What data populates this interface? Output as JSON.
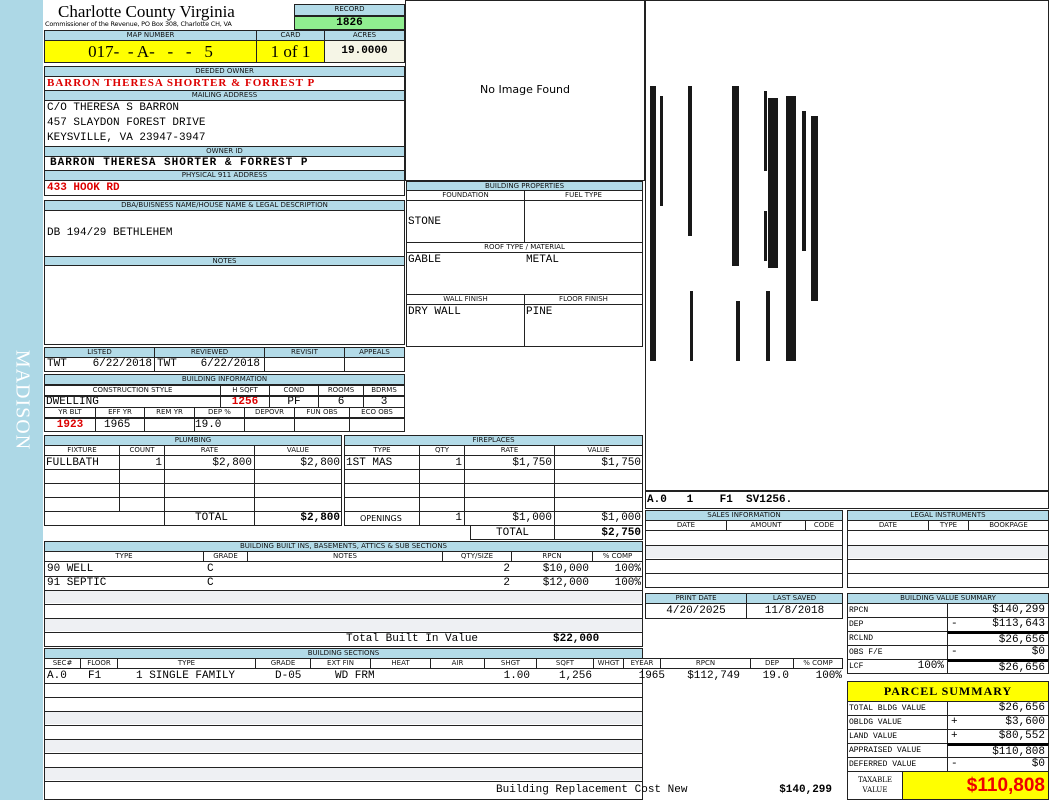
{
  "sidebar": {
    "label": "MADISON"
  },
  "header": {
    "title": "Charlotte County Virginia",
    "subtitle": "Commissioner of the Revenue, PO Box 308, Charlotte CH, VA",
    "record_label": "RECORD",
    "record": "1826"
  },
  "parcel": {
    "map_label": "MAP NUMBER",
    "map": "017-  - A-   -   -   5",
    "card_label": "CARD",
    "card": "1 of 1",
    "acres_label": "ACRES",
    "acres": "19.0000"
  },
  "owner": {
    "deeded_label": "DEEDED OWNER",
    "deeded": "BARRON THERESA SHORTER & FORREST P",
    "mailing_label": "MAILING ADDRESS",
    "mailing": [
      "C/O THERESA S BARRON",
      "457 SLAYDON FOREST DRIVE",
      "KEYSVILLE, VA 23947-3947"
    ],
    "id_label": "OWNER ID",
    "id": "BARRON THERESA SHORTER & FORREST P",
    "physical_label": "PHYSICAL 911 ADDRESS",
    "physical": "433 HOOK RD"
  },
  "dba": {
    "label": "DBA/BUISNESS NAME/HOUSE NAME & LEGAL DESCRIPTION",
    "value": "DB 194/29 BETHLEHEM"
  },
  "notes": {
    "label": "NOTES"
  },
  "image": {
    "text": "No Image Found"
  },
  "listing": {
    "listed_label": "LISTED",
    "listed_by": "TWT",
    "listed": "6/22/2018",
    "reviewed_label": "REVIEWED",
    "reviewed_by": "TWT",
    "reviewed": "6/22/2018",
    "revisit_label": "REVISIT",
    "appeals_label": "APPEALS"
  },
  "building_info": {
    "label": "BUILDING INFORMATION",
    "style_label": "CONSTRUCTION STYLE",
    "style": "DWELLING",
    "hsqft_label": "H SQFT",
    "hsqft": "1256",
    "cond_label": "COND",
    "cond": "PF",
    "rooms_label": "ROOMS",
    "rooms": "6",
    "bdrms_label": "BDRMS",
    "bdrms": "3",
    "yrblt_label": "YR BLT",
    "yrblt": "1923",
    "effyr_label": "EFF YR",
    "effyr": "1965",
    "remyr_label": "REM YR",
    "dep_label": "DEP %",
    "dep": "19.0",
    "depovr_label": "DEPOVR",
    "funobs_label": "FUN OBS",
    "ecoobs_label": "ECO OBS"
  },
  "building_props": {
    "label": "BUILDING PROPERTIES",
    "foundation_label": "FOUNDATION",
    "foundation": "STONE",
    "fuel_label": "FUEL TYPE",
    "roof_label": "ROOF TYPE / MATERIAL",
    "roof_type": "GABLE",
    "roof_material": "METAL",
    "wall_label": "WALL FINISH",
    "wall": "DRY WALL",
    "floor_label": "FLOOR FINISH",
    "floor": "PINE"
  },
  "plumbing": {
    "label": "PLUMBING",
    "cols": [
      "FIXTURE",
      "COUNT",
      "RATE",
      "VALUE"
    ],
    "rows": [
      [
        "FULLBATH",
        "1",
        "$2,800",
        "$2,800"
      ]
    ],
    "total_label": "TOTAL",
    "total": "$2,800"
  },
  "fireplaces": {
    "label": "FIREPLACES",
    "cols": [
      "TYPE",
      "QTY",
      "RATE",
      "VALUE"
    ],
    "rows": [
      [
        "1ST MAS",
        "1",
        "$1,750",
        "$1,750"
      ]
    ],
    "openings_label": "OPENINGS",
    "openings_qty": "1",
    "openings_rate": "$1,000",
    "openings_value": "$1,000",
    "total_label": "TOTAL",
    "total": "$2,750"
  },
  "builtins": {
    "label": "BUILDING BUILT INS, BASEMENTS, ATTICS & SUB SECTIONS",
    "cols": [
      "TYPE",
      "GRADE",
      "NOTES",
      "QTY/SIZE",
      "RPCN",
      "% COMP"
    ],
    "rows": [
      [
        "90 WELL",
        "C",
        "",
        "2",
        "$10,000",
        "100%"
      ],
      [
        "91 SEPTIC",
        "C",
        "",
        "2",
        "$12,000",
        "100%"
      ]
    ],
    "total_label": "Total Built In Value",
    "total": "$22,000"
  },
  "sections": {
    "label": "BUILDING SECTIONS",
    "cols": [
      "SEC#",
      "FLOOR",
      "TYPE",
      "GRADE",
      "EXT FIN",
      "HEAT",
      "AIR",
      "SHGT",
      "SQFT",
      "WHGT",
      "EYEAR",
      "RPCN",
      "DEP",
      "% COMP"
    ],
    "rows": [
      [
        "A.0",
        "F1",
        "1 SINGLE FAMILY",
        "D-05",
        "WD FRM",
        "",
        "",
        "1.00",
        "1,256",
        "",
        "1965",
        "$112,749",
        "19.0",
        "100%"
      ]
    ],
    "total_label": "Building Replacement Cost New",
    "total": "$140,299"
  },
  "sketch": {
    "caption": "A.0   1    F1  SV1256."
  },
  "sales": {
    "label": "SALES INFORMATION",
    "cols": [
      "DATE",
      "AMOUNT",
      "CODE"
    ]
  },
  "legal": {
    "label": "LEGAL INSTRUMENTS",
    "cols": [
      "DATE",
      "TYPE",
      "BOOKPAGE"
    ]
  },
  "dates": {
    "print_label": "PRINT DATE",
    "print": "4/20/2025",
    "saved_label": "LAST SAVED",
    "saved": "11/8/2018"
  },
  "bvs": {
    "label": "BUILDING VALUE SUMMARY",
    "rows": [
      {
        "label": "RPCN",
        "op": "",
        "pct": "",
        "value": "$140,299"
      },
      {
        "label": "DEP",
        "op": "-",
        "pct": "",
        "value": "$113,643"
      },
      {
        "label": "RCLND",
        "op": "",
        "pct": "",
        "value": "$26,656"
      },
      {
        "label": "OBS F/E",
        "op": "-",
        "pct": "",
        "value": "$0"
      },
      {
        "label": "LCF",
        "op": "",
        "pct": "100%",
        "value": "$26,656"
      }
    ]
  },
  "summary": {
    "label": "PARCEL SUMMARY",
    "rows": [
      {
        "label": "TOTAL BLDG VALUE",
        "op": "",
        "value": "$26,656"
      },
      {
        "label": "OBLDG VALUE",
        "op": "+",
        "value": "$3,600"
      },
      {
        "label": "LAND VALUE",
        "op": "+",
        "value": "$80,552"
      },
      {
        "label": "APPRAISED VALUE",
        "op": "",
        "value": "$110,808"
      },
      {
        "label": "DEFERRED VALUE",
        "op": "-",
        "value": "$0"
      }
    ],
    "taxable_label": "TAXABLE VALUE",
    "taxable": "$110,808"
  },
  "colors": {
    "header": "#b3dbe8",
    "sidebar": "#add8e6",
    "highlight": "#ffff00",
    "record": "#90ee90",
    "emphasis": "#dd0000"
  }
}
